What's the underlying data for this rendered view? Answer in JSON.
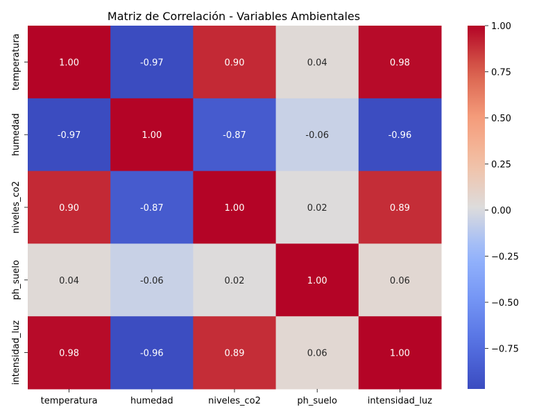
{
  "chart_data": {
    "type": "heatmap",
    "title": "Matriz de Correlación - Variables Ambientales",
    "xlabel": "",
    "ylabel": "",
    "x_labels": [
      "temperatura",
      "humedad",
      "niveles_co2",
      "ph_suelo",
      "intensidad_luz"
    ],
    "y_labels": [
      "temperatura",
      "humedad",
      "niveles_co2",
      "ph_suelo",
      "intensidad_luz"
    ],
    "values": [
      [
        1.0,
        -0.97,
        0.9,
        0.04,
        0.98
      ],
      [
        -0.97,
        1.0,
        -0.87,
        -0.06,
        -0.96
      ],
      [
        0.9,
        -0.87,
        1.0,
        0.02,
        0.89
      ],
      [
        0.04,
        -0.06,
        0.02,
        1.0,
        0.06
      ],
      [
        0.98,
        -0.96,
        0.89,
        0.06,
        1.0
      ]
    ],
    "annotations_format": "0.00",
    "colormap": "coolwarm",
    "colorbar": {
      "vmin": -0.97,
      "vmax": 1.0,
      "ticks": [
        1.0,
        0.75,
        0.5,
        0.25,
        0.0,
        -0.25,
        -0.5,
        -0.75
      ],
      "tick_labels": [
        "1.00",
        "0.75",
        "0.50",
        "0.25",
        "0.00",
        "−0.25",
        "−0.50",
        "−0.75"
      ]
    },
    "grid": false,
    "legend": "colorbar-right"
  }
}
